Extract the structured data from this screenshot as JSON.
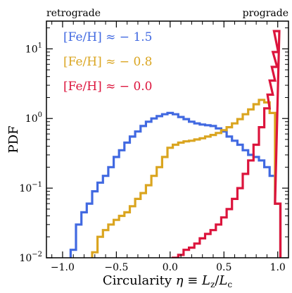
{
  "chart_data": {
    "type": "line",
    "xlabel": "Circularity η ≡ L_z/L_c",
    "xlabel_parts": {
      "prefix": "Circularity ",
      "eta": "η",
      "equiv": " ≡ ",
      "L": "L",
      "z": "z",
      "slash": "/",
      "c": "c"
    },
    "ylabel": "PDF",
    "x_scale": "linear",
    "y_scale": "log",
    "xlim": [
      -1.15,
      1.1
    ],
    "ylim": [
      0.01,
      25
    ],
    "x_ticks": [
      -1.0,
      -0.5,
      0.0,
      0.5,
      1.0
    ],
    "x_tick_labels": [
      "−1.0",
      "−0.5",
      "0.0",
      "0.5",
      "1.0"
    ],
    "y_ticks": [
      0.01,
      0.1,
      1,
      10
    ],
    "y_tick_labels": [
      {
        "base": "10",
        "exp": "−2"
      },
      {
        "base": "10",
        "exp": "−1"
      },
      {
        "base": "10",
        "exp": "0"
      },
      {
        "base": "10",
        "exp": "1"
      }
    ],
    "annotations": {
      "left": "retrograde",
      "right": "prograde"
    },
    "legend_position": "top-left",
    "grid": false,
    "series": [
      {
        "name": "[Fe/H] ≈ − 1.5",
        "color": "#4169e1",
        "x": [
          -0.9,
          -0.85,
          -0.8,
          -0.75,
          -0.7,
          -0.65,
          -0.6,
          -0.55,
          -0.5,
          -0.45,
          -0.4,
          -0.35,
          -0.3,
          -0.25,
          -0.2,
          -0.15,
          -0.1,
          -0.05,
          0.0,
          0.05,
          0.1,
          0.15,
          0.2,
          0.25,
          0.3,
          0.35,
          0.4,
          0.45,
          0.5,
          0.55,
          0.6,
          0.65,
          0.7,
          0.75,
          0.8,
          0.85,
          0.9,
          0.95,
          1.0
        ],
        "y": [
          0.013,
          0.03,
          0.045,
          0.06,
          0.09,
          0.12,
          0.15,
          0.2,
          0.28,
          0.35,
          0.45,
          0.55,
          0.65,
          0.78,
          0.9,
          1.0,
          1.08,
          1.15,
          1.2,
          1.15,
          1.05,
          0.98,
          0.9,
          0.85,
          0.82,
          0.8,
          0.78,
          0.72,
          0.65,
          0.55,
          0.48,
          0.42,
          0.35,
          0.3,
          0.28,
          0.25,
          0.2,
          0.15,
          0.06
        ]
      },
      {
        "name": "[Fe/H] ≈ − 0.8",
        "color": "#daa520",
        "x": [
          -0.7,
          -0.65,
          -0.6,
          -0.55,
          -0.5,
          -0.45,
          -0.4,
          -0.35,
          -0.3,
          -0.25,
          -0.2,
          -0.15,
          -0.1,
          -0.05,
          0.0,
          0.05,
          0.1,
          0.15,
          0.2,
          0.25,
          0.3,
          0.35,
          0.4,
          0.45,
          0.5,
          0.55,
          0.6,
          0.65,
          0.7,
          0.75,
          0.8,
          0.85,
          0.9,
          0.95,
          1.0
        ],
        "y": [
          0.012,
          0.02,
          0.025,
          0.03,
          0.035,
          0.04,
          0.045,
          0.055,
          0.07,
          0.085,
          0.11,
          0.15,
          0.2,
          0.28,
          0.38,
          0.42,
          0.45,
          0.47,
          0.48,
          0.5,
          0.52,
          0.55,
          0.58,
          0.62,
          0.68,
          0.75,
          0.85,
          0.98,
          1.15,
          1.35,
          1.6,
          1.85,
          1.7,
          1.2,
          0.06
        ]
      },
      {
        "name": "[Fe/H] ≈ − 0.0",
        "color": "#dc143c",
        "x": [
          0.05,
          0.1,
          0.15,
          0.2,
          0.25,
          0.3,
          0.35,
          0.4,
          0.45,
          0.5,
          0.55,
          0.6,
          0.65,
          0.7,
          0.75,
          0.8,
          0.85,
          0.9,
          0.93,
          0.95,
          0.97,
          0.98,
          0.99,
          1.0
        ],
        "y": [
          0.01,
          0.011,
          0.013,
          0.014,
          0.016,
          0.019,
          0.022,
          0.025,
          0.03,
          0.038,
          0.05,
          0.07,
          0.1,
          0.16,
          0.25,
          0.42,
          0.75,
          1.4,
          2.2,
          3.5,
          5.5,
          9.0,
          18.0,
          0.06
        ]
      }
    ]
  }
}
